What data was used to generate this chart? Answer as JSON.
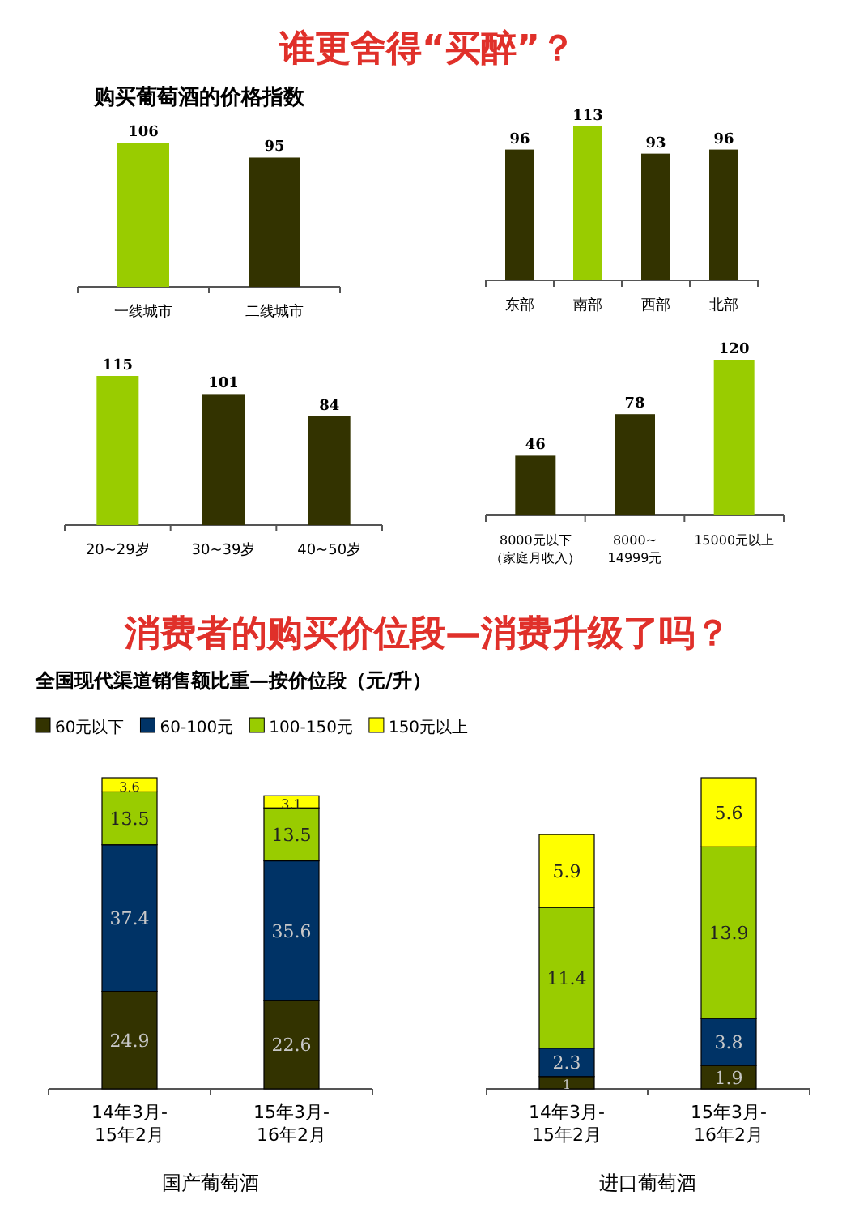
{
  "chart_data": [
    {
      "type": "other",
      "title": "谁更舍得“买醉”？"
    },
    {
      "type": "bar",
      "title": "购买葡萄酒的价格指数",
      "categories": [
        "一线城市",
        "二线城市"
      ],
      "values": [
        106,
        95
      ],
      "colors": [
        "#99cc00",
        "#333300"
      ],
      "data_labels": true,
      "tick_labels": "x"
    },
    {
      "type": "bar",
      "categories": [
        "东部",
        "南部",
        "西部",
        "北部"
      ],
      "values": [
        96,
        113,
        93,
        96
      ],
      "colors": [
        "#333300",
        "#99cc00",
        "#333300",
        "#333300"
      ],
      "data_labels": true,
      "tick_labels": "x"
    },
    {
      "type": "bar",
      "categories": [
        "20~29岁",
        "30~39岁",
        "40~50岁"
      ],
      "values": [
        115,
        101,
        84
      ],
      "colors": [
        "#99cc00",
        "#333300",
        "#333300"
      ],
      "data_labels": true,
      "tick_labels": "x"
    },
    {
      "type": "bar",
      "categories": [
        "8000元以下（家庭月收入）",
        "8000~14999元",
        "15000元以上"
      ],
      "values": [
        46,
        78,
        120
      ],
      "colors": [
        "#333300",
        "#333300",
        "#99cc00"
      ],
      "data_labels": true,
      "tick_labels": "x"
    },
    {
      "type": "other",
      "title": "消费者的购买价位段—消费升级了吗？"
    },
    {
      "type": "bar",
      "title": "全国现代渠道销售额比重—按价位段（元/升）",
      "xlabel": "国产葡萄酒",
      "categories": [
        "14年3月-15年2月",
        "15年3月-16年2月"
      ],
      "stacked": true,
      "data_labels": true,
      "legend": "top",
      "tick_labels": "x",
      "series": [
        {
          "name": "60元以下",
          "color": "#333300",
          "values": [
            24.9,
            22.6
          ]
        },
        {
          "name": "60-100元",
          "color": "#003366",
          "values": [
            37.4,
            35.6
          ]
        },
        {
          "name": "100-150元",
          "color": "#99cc00",
          "values": [
            13.5,
            13.5
          ]
        },
        {
          "name": "150元以上",
          "color": "#ffff00",
          "values": [
            3.6,
            3.1
          ]
        }
      ]
    },
    {
      "type": "bar",
      "xlabel": "进口葡萄酒",
      "categories": [
        "14年3月-15年2月",
        "15年3月-16年2月"
      ],
      "stacked": true,
      "data_labels": true,
      "tick_labels": "x",
      "series": [
        {
          "color": "#333300",
          "values": [
            1,
            1.9
          ]
        },
        {
          "color": "#003366",
          "values": [
            2.3,
            3.8
          ]
        },
        {
          "color": "#99cc00",
          "values": [
            11.4,
            13.9
          ]
        },
        {
          "color": "#ffff00",
          "values": [
            5.9,
            5.6
          ]
        }
      ]
    }
  ]
}
